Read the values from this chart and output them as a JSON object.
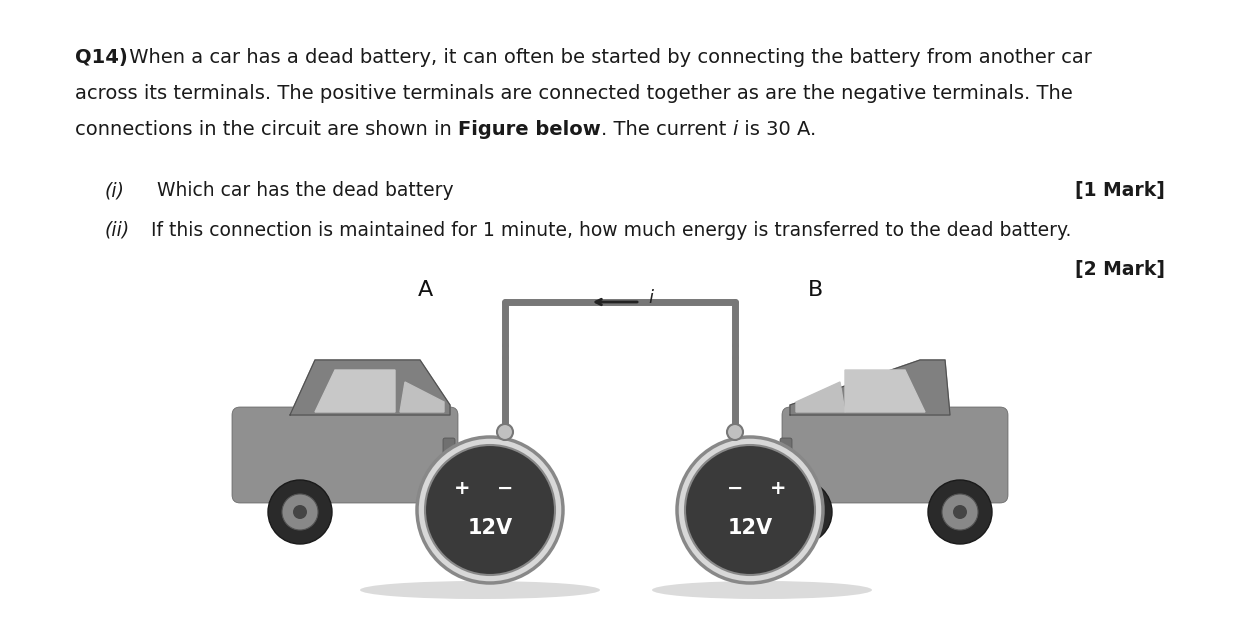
{
  "background_color": "#ffffff",
  "text_color": "#1a1a1a",
  "fs": 14,
  "fs_sub": 13.5,
  "q_bold": "Q14)",
  "line1_rest": " When a car has a dead battery, it can often be started by connecting the battery from another car",
  "line2": "across its terminals. The positive terminals are connected together as are the negative terminals. The",
  "line3_pre": "connections in the circuit are shown in ",
  "line3_bold": "Figure below",
  "line3_post_pre": ". The current ",
  "line3_italic": "i",
  "line3_post": " is 30 A.",
  "sub_i_italic": "(i)",
  "sub_i_text": "  Which car has the dead battery",
  "sub_i_mark": "[1 Mark]",
  "sub_ii_italic": "(ii)",
  "sub_ii_text": " If this connection is maintained for 1 minute, how much energy is transferred to the dead battery.",
  "sub_ii_mark": "[2 Mark]",
  "label_A": "A",
  "label_B": "B",
  "batt_label": "12V",
  "gray_car": "#888888",
  "gray_dark": "#555555",
  "gray_light": "#cccccc",
  "gray_mid": "#aaaaaa",
  "wire_color": "#666666",
  "batt_bg": "#444444"
}
